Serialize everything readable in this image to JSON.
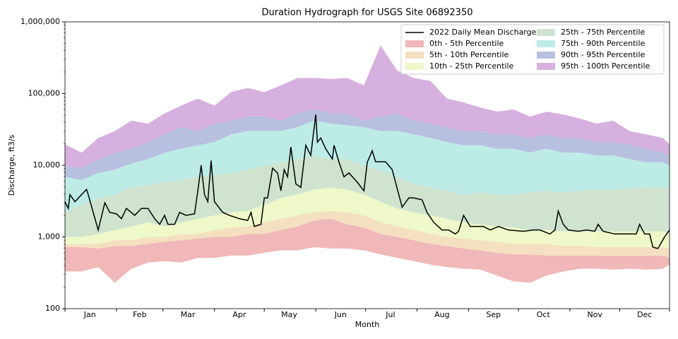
{
  "chart_data": {
    "type": "band-area",
    "title": "Duration Hydrograph for USGS Site 06892350",
    "xlabel": "Month",
    "ylabel": "Discharge, ft3/s",
    "xlim": [
      1,
      365
    ],
    "ylim": [
      100,
      1000000
    ],
    "log_y": true,
    "legend": "upper right",
    "legend_columns": 2,
    "yticks": [
      100,
      {
        "value": 1000,
        "label": "1,000"
      },
      {
        "value": 10000,
        "label": "10,000"
      },
      {
        "value": 100000,
        "label": "100,000"
      },
      {
        "value": 1000000,
        "label": "1,000,000"
      }
    ],
    "xticks": [
      {
        "value": 16,
        "label": "Jan"
      },
      {
        "value": 46,
        "label": "Feb"
      },
      {
        "value": 75,
        "label": "Mar"
      },
      {
        "value": 106,
        "label": "Apr"
      },
      {
        "value": 136,
        "label": "May"
      },
      {
        "value": 167,
        "label": "Jun"
      },
      {
        "value": 197,
        "label": "Jul"
      },
      {
        "value": 228,
        "label": "Aug"
      },
      {
        "value": 259,
        "label": "Sep"
      },
      {
        "value": 289,
        "label": "Oct"
      },
      {
        "value": 320,
        "label": "Nov"
      },
      {
        "value": 350,
        "label": "Dec"
      }
    ],
    "xminorticks": [
      1,
      32,
      60,
      91,
      121,
      152,
      182,
      213,
      244,
      274,
      305,
      335,
      365
    ],
    "x": [
      1,
      11,
      21,
      31,
      41,
      51,
      61,
      71,
      81,
      91,
      101,
      111,
      121,
      131,
      141,
      151,
      161,
      171,
      181,
      191,
      201,
      211,
      221,
      231,
      241,
      251,
      261,
      271,
      281,
      291,
      301,
      311,
      321,
      331,
      341,
      351,
      361,
      365
    ],
    "bounds": [
      [
        330,
        330,
        380,
        230,
        360,
        440,
        460,
        440,
        510,
        510,
        550,
        550,
        600,
        650,
        650,
        720,
        690,
        690,
        650,
        570,
        510,
        460,
        410,
        380,
        360,
        350,
        290,
        240,
        230,
        290,
        330,
        360,
        360,
        350,
        360,
        350,
        360,
        410
      ],
      [
        720,
        720,
        690,
        750,
        750,
        800,
        860,
        900,
        950,
        1000,
        1000,
        1100,
        1100,
        1250,
        1400,
        1700,
        1800,
        1500,
        1350,
        1100,
        1000,
        900,
        800,
        750,
        690,
        650,
        600,
        570,
        570,
        550,
        550,
        550,
        550,
        550,
        550,
        550,
        550,
        510
      ],
      [
        800,
        800,
        800,
        900,
        900,
        1000,
        1000,
        1100,
        1100,
        1250,
        1350,
        1400,
        1600,
        1800,
        2000,
        2200,
        2300,
        2200,
        2000,
        1600,
        1400,
        1250,
        1100,
        1000,
        950,
        900,
        860,
        800,
        800,
        800,
        750,
        750,
        720,
        720,
        720,
        720,
        720,
        690
      ],
      [
        1000,
        1000,
        1100,
        1250,
        1400,
        1600,
        1400,
        1600,
        1800,
        2000,
        2200,
        2300,
        2800,
        3500,
        3900,
        4600,
        4900,
        4600,
        3900,
        3100,
        2500,
        2200,
        2000,
        1800,
        1600,
        1500,
        1400,
        1350,
        1250,
        1250,
        1200,
        1200,
        1200,
        1200,
        1200,
        1200,
        1200,
        1100
      ],
      [
        2200,
        2800,
        3500,
        3900,
        4900,
        5300,
        5800,
        6200,
        6900,
        7300,
        7800,
        8700,
        9800,
        11000,
        12200,
        13700,
        12200,
        12200,
        9800,
        8700,
        6900,
        5500,
        4900,
        4400,
        3900,
        4200,
        3900,
        3900,
        4200,
        4400,
        4200,
        4400,
        4600,
        4600,
        4800,
        4900,
        4900,
        4600
      ],
      [
        6900,
        6200,
        7800,
        8700,
        10500,
        12200,
        15000,
        17000,
        19000,
        21000,
        27000,
        30000,
        30000,
        30000,
        34000,
        42000,
        38000,
        36000,
        34000,
        30000,
        30000,
        27000,
        24000,
        21000,
        19000,
        19000,
        17000,
        17000,
        15000,
        17000,
        15000,
        15000,
        13700,
        13700,
        12200,
        11000,
        11000,
        9800
      ],
      [
        9800,
        9100,
        12000,
        15000,
        17000,
        21000,
        27000,
        34000,
        30000,
        38000,
        42000,
        48000,
        48000,
        42000,
        53000,
        60000,
        53000,
        53000,
        42000,
        48000,
        53000,
        42000,
        38000,
        34000,
        30000,
        30000,
        27000,
        27000,
        24000,
        27000,
        24000,
        24000,
        21000,
        21000,
        19500,
        17000,
        15000,
        13700
      ],
      [
        19500,
        15000,
        24000,
        30000,
        42000,
        38000,
        53000,
        68000,
        85000,
        68000,
        105000,
        120000,
        105000,
        130000,
        165000,
        165000,
        160000,
        165000,
        130000,
        470000,
        210000,
        165000,
        150000,
        85000,
        75000,
        64000,
        56000,
        60000,
        48000,
        56000,
        51000,
        45000,
        38000,
        42000,
        30000,
        27000,
        24000,
        19500
      ]
    ],
    "series": [
      {
        "name": "0th - 5th Percentile",
        "color": "#f0b8b8"
      },
      {
        "name": "5th - 10th Percentile",
        "color": "#f4dfc0"
      },
      {
        "name": "10th - 25th Percentile",
        "color": "#eef8c8"
      },
      {
        "name": "25th - 75th Percentile",
        "color": "#cfe3cf"
      },
      {
        "name": "75th - 90th Percentile",
        "color": "#bdece6"
      },
      {
        "name": "90th - 95th Percentile",
        "color": "#b8c0e0"
      },
      {
        "name": "95th - 100th Percentile",
        "color": "#d6b0de"
      }
    ],
    "line": {
      "name": "2022 Daily Mean Discharge",
      "color": "#000000",
      "x": [
        1,
        3,
        4,
        7,
        11,
        14,
        15,
        18,
        21,
        25,
        28,
        32,
        35,
        38,
        43,
        47,
        51,
        55,
        58,
        61,
        63,
        67,
        70,
        74,
        79,
        81,
        83,
        85,
        87,
        89,
        91,
        96,
        100,
        106,
        111,
        113,
        115,
        119,
        121,
        123,
        126,
        129,
        131,
        133,
        135,
        137,
        140,
        143,
        146,
        149,
        152,
        153,
        155,
        158,
        162,
        163,
        166,
        169,
        172,
        177,
        181,
        183,
        186,
        188,
        194,
        198,
        202,
        204,
        208,
        211,
        216,
        219,
        223,
        228,
        232,
        236,
        238,
        241,
        245,
        249,
        253,
        257,
        262,
        268,
        277,
        283,
        287,
        293,
        296,
        298,
        301,
        304,
        310,
        315,
        320,
        322,
        325,
        332,
        338,
        345,
        347,
        350,
        353,
        355,
        358,
        362,
        365
      ],
      "values": [
        3100,
        2500,
        3900,
        3100,
        3900,
        4600,
        3900,
        2200,
        1250,
        3000,
        2200,
        2100,
        1800,
        2500,
        2000,
        2500,
        2500,
        1800,
        1500,
        2000,
        1500,
        1500,
        2200,
        2000,
        2100,
        4400,
        10000,
        3900,
        3100,
        11600,
        3100,
        2200,
        2000,
        1800,
        1700,
        2200,
        1400,
        1500,
        3500,
        3500,
        9100,
        7800,
        4400,
        8700,
        6900,
        18000,
        5500,
        4900,
        19000,
        13700,
        51000,
        21000,
        24000,
        17000,
        12200,
        19000,
        11000,
        6900,
        7800,
        5800,
        4400,
        11000,
        16000,
        11200,
        11200,
        8700,
        3900,
        2600,
        3500,
        3500,
        3300,
        2200,
        1600,
        1250,
        1250,
        1100,
        1200,
        2000,
        1400,
        1400,
        1400,
        1250,
        1400,
        1250,
        1200,
        1250,
        1250,
        1100,
        1250,
        2300,
        1500,
        1250,
        1200,
        1250,
        1200,
        1500,
        1200,
        1100,
        1100,
        1100,
        1500,
        1100,
        1100,
        720,
        690,
        1000,
        1250
      ]
    }
  }
}
